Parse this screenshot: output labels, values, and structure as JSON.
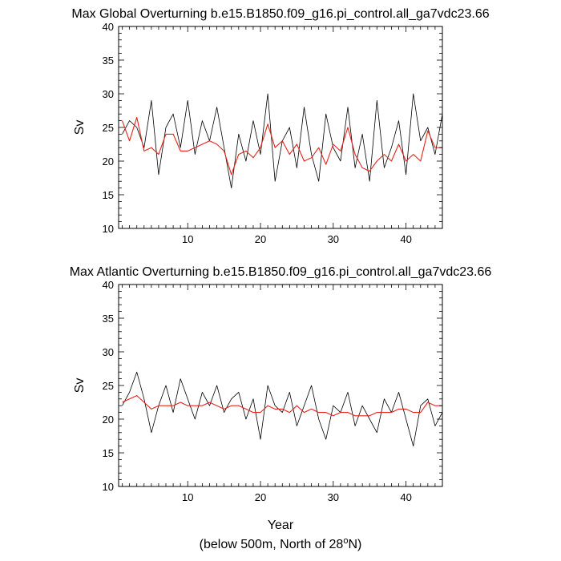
{
  "chart_data": [
    {
      "type": "line",
      "title": "Max Global Overturning b.e15.B1850.f09_g16.pi_control.all_ga7vdc23.66",
      "ylabel": "Sv",
      "xlabel": "",
      "xlim": [
        0.5,
        45
      ],
      "ylim": [
        10,
        40
      ],
      "x_ticks": [
        10,
        20,
        30,
        40
      ],
      "y_ticks": [
        10,
        15,
        20,
        25,
        30,
        35,
        40
      ],
      "grid": false,
      "series": [
        {
          "color": "#000000",
          "x": [
            1,
            2,
            3,
            4,
            5,
            6,
            7,
            8,
            9,
            10,
            11,
            12,
            13,
            14,
            15,
            16,
            17,
            18,
            19,
            20,
            21,
            22,
            23,
            24,
            25,
            26,
            27,
            28,
            29,
            30,
            31,
            32,
            33,
            34,
            35,
            36,
            37,
            38,
            39,
            40,
            41,
            42,
            43,
            44,
            45
          ],
          "values": [
            24,
            26,
            25,
            22,
            29,
            18,
            25,
            27,
            22,
            29,
            21,
            26,
            23,
            28,
            22,
            16,
            24,
            20,
            26,
            21,
            30,
            17,
            23,
            25,
            19,
            28,
            21,
            17,
            27,
            22,
            20,
            28,
            19,
            24,
            17,
            29,
            19,
            22,
            26,
            18,
            30,
            23,
            25,
            21,
            27
          ]
        },
        {
          "color": "#e8231b",
          "x": [
            1,
            2,
            3,
            4,
            5,
            6,
            7,
            8,
            9,
            10,
            11,
            12,
            13,
            14,
            15,
            16,
            17,
            18,
            19,
            20,
            21,
            22,
            23,
            24,
            25,
            26,
            27,
            28,
            29,
            30,
            31,
            32,
            33,
            34,
            35,
            36,
            37,
            38,
            39,
            40,
            41,
            42,
            43,
            44,
            45
          ],
          "values": [
            26,
            23,
            26.5,
            21.5,
            22,
            21,
            24,
            24,
            21.5,
            21.5,
            22,
            22.5,
            23,
            22.5,
            21.5,
            18,
            21,
            21.5,
            20.5,
            22,
            25.5,
            22,
            23,
            21,
            22.5,
            20,
            20.5,
            22,
            19.5,
            22.5,
            21.5,
            25,
            21,
            19,
            18.5,
            20,
            21,
            20,
            22.5,
            20,
            21,
            20,
            24.5,
            22,
            22
          ]
        }
      ]
    },
    {
      "type": "line",
      "title": "Max Atlantic Overturning b.e15.B1850.f09_g16.pi_control.all_ga7vdc23.66",
      "ylabel": "Sv",
      "xlabel": "Year",
      "xlim": [
        0.5,
        45
      ],
      "ylim": [
        10,
        40
      ],
      "x_ticks": [
        10,
        20,
        30,
        40
      ],
      "y_ticks": [
        10,
        15,
        20,
        25,
        30,
        35,
        40
      ],
      "grid": false,
      "series": [
        {
          "color": "#000000",
          "x": [
            1,
            2,
            3,
            4,
            5,
            6,
            7,
            8,
            9,
            10,
            11,
            12,
            13,
            14,
            15,
            16,
            17,
            18,
            19,
            20,
            21,
            22,
            23,
            24,
            25,
            26,
            27,
            28,
            29,
            30,
            31,
            32,
            33,
            34,
            35,
            36,
            37,
            38,
            39,
            40,
            41,
            42,
            43,
            44,
            45
          ],
          "values": [
            22,
            24,
            27,
            23,
            18,
            22,
            25,
            21,
            26,
            23,
            20,
            24,
            22,
            25,
            21,
            23,
            24,
            20,
            23,
            17,
            25,
            22,
            21,
            24,
            19,
            22,
            25,
            20,
            17,
            22,
            21,
            24,
            19,
            22,
            20,
            18,
            23,
            21,
            24,
            20,
            16,
            22,
            23,
            19,
            21
          ]
        },
        {
          "color": "#e8231b",
          "x": [
            1,
            2,
            3,
            4,
            5,
            6,
            7,
            8,
            9,
            10,
            11,
            12,
            13,
            14,
            15,
            16,
            17,
            18,
            19,
            20,
            21,
            22,
            23,
            24,
            25,
            26,
            27,
            28,
            29,
            30,
            31,
            32,
            33,
            34,
            35,
            36,
            37,
            38,
            39,
            40,
            41,
            42,
            43,
            44,
            45
          ],
          "values": [
            22.5,
            23,
            23.5,
            22.5,
            21.5,
            22,
            22,
            22,
            22.5,
            22,
            22,
            22,
            22.5,
            22,
            21.5,
            22,
            22,
            21.5,
            21,
            21,
            22,
            21.5,
            21.5,
            21,
            22,
            21,
            21.5,
            21,
            21,
            20.5,
            21,
            21,
            20.5,
            20.5,
            20.5,
            21,
            21,
            21,
            21.5,
            21.5,
            21,
            21,
            22.5,
            22,
            22
          ]
        }
      ]
    }
  ],
  "footer": {
    "prefix": "(below 500m, North of 28",
    "superscript": "o",
    "suffix": "N)"
  }
}
